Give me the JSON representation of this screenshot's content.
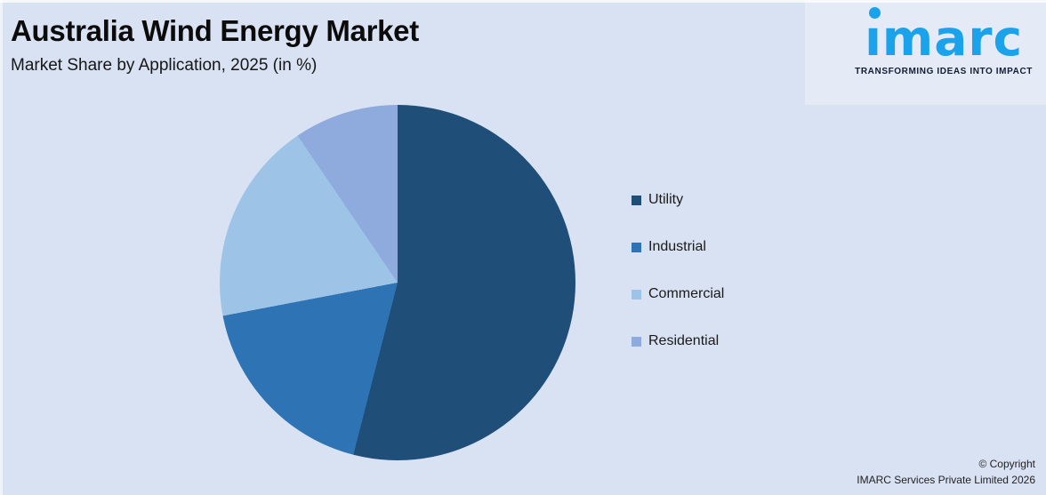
{
  "page": {
    "background_color": "#D9E2F2"
  },
  "header": {
    "title": "Australia Wind Energy Market",
    "subtitle": "Market Share by Application, 2025 (in %)"
  },
  "logo": {
    "wordmark": "imarc",
    "wordmark_display": "ımarc",
    "tagline": "TRANSFORMING IDEAS INTO IMPACT",
    "blue": "#1AA2EB",
    "dark": "#111B33"
  },
  "chart_data": {
    "type": "pie",
    "title": "Australia Wind Energy Market",
    "subtitle": "Market Share by Application, 2025 (in %)",
    "unit": "%",
    "categories": [
      "Utility",
      "Industrial",
      "Commercial",
      "Residential"
    ],
    "values": [
      54.0,
      18.0,
      18.5,
      9.5
    ],
    "values_are_estimates_from_angles": true,
    "colors": [
      "#1F4E79",
      "#2E74B5",
      "#9DC3E6",
      "#8FAADC"
    ],
    "start_angle_deg": 0,
    "direction": "clockwise",
    "legend_position": "right",
    "data_labels_shown": false
  },
  "footer": {
    "copyright_line1": "© Copyright",
    "copyright_line2": "IMARC Services Private Limited 2026"
  }
}
